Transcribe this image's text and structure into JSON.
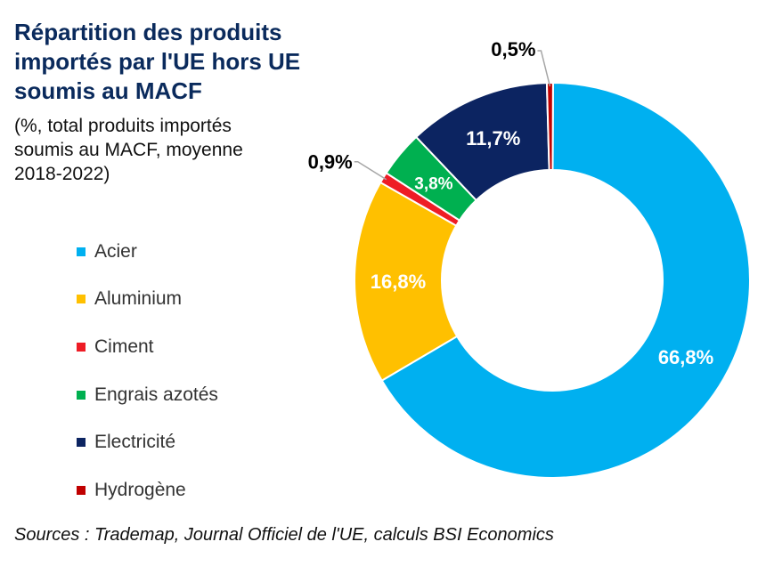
{
  "chart_data": {
    "type": "pie",
    "style": "donut",
    "title": "Répartition des produits importés par l'UE hors UE soumis au MACF",
    "subtitle": "(%, total produits importés soumis au MACF, moyenne 2018-2022)",
    "unit": "%",
    "slices": [
      {
        "name": "Acier",
        "value": 66.8,
        "label": "66,8%",
        "color": "#00b0f0",
        "label_inside": true,
        "label_color": "#ffffff"
      },
      {
        "name": "Aluminium",
        "value": 16.8,
        "label": "16,8%",
        "color": "#ffc000",
        "label_inside": true,
        "label_color": "#ffffff"
      },
      {
        "name": "Ciment",
        "value": 0.9,
        "label": "0,9%",
        "color": "#ee1c25",
        "label_inside": false,
        "label_color": "#000000"
      },
      {
        "name": "Engrais azotés",
        "value": 3.8,
        "label": "3,8%",
        "color": "#00b050",
        "label_inside": true,
        "label_color": "#ffffff"
      },
      {
        "name": "Electricité",
        "value": 11.7,
        "label": "11,7%",
        "color": "#0c2461",
        "label_inside": true,
        "label_color": "#ffffff"
      },
      {
        "name": "Hydrogène",
        "value": 0.5,
        "label": "0,5%",
        "color": "#c00000",
        "label_inside": false,
        "label_color": "#000000"
      }
    ],
    "legend_position": "left"
  },
  "source": "Sources : Trademap, Journal Officiel de l'UE, calculs BSI Economics"
}
